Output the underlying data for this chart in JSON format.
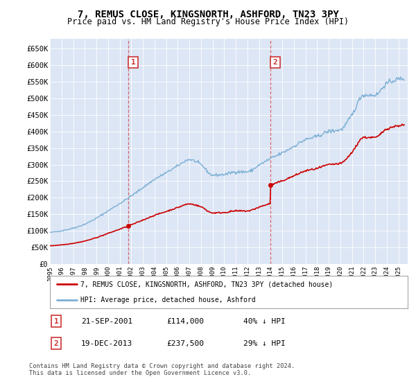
{
  "title": "7, REMUS CLOSE, KINGSNORTH, ASHFORD, TN23 3PY",
  "subtitle": "Price paid vs. HM Land Registry's House Price Index (HPI)",
  "bg_color": "#ffffff",
  "plot_bg_color": "#dce6f5",
  "grid_color": "#ffffff",
  "sale1_date_x": 2001.72,
  "sale1_price": 114000,
  "sale1_label": "1",
  "sale2_date_x": 2013.96,
  "sale2_price": 237500,
  "sale2_label": "2",
  "xmin": 1995.0,
  "xmax": 2025.8,
  "ymin": 0,
  "ymax": 680000,
  "yticks": [
    0,
    50000,
    100000,
    150000,
    200000,
    250000,
    300000,
    350000,
    400000,
    450000,
    500000,
    550000,
    600000,
    650000
  ],
  "ytick_labels": [
    "£0",
    "£50K",
    "£100K",
    "£150K",
    "£200K",
    "£250K",
    "£300K",
    "£350K",
    "£400K",
    "£450K",
    "£500K",
    "£550K",
    "£600K",
    "£650K"
  ],
  "xticks": [
    1995,
    1996,
    1997,
    1998,
    1999,
    2000,
    2001,
    2002,
    2003,
    2004,
    2005,
    2006,
    2007,
    2008,
    2009,
    2010,
    2011,
    2012,
    2013,
    2014,
    2015,
    2016,
    2017,
    2018,
    2019,
    2020,
    2021,
    2022,
    2023,
    2024,
    2025
  ],
  "hpi_color": "#7bafd4",
  "price_color": "#cc0000",
  "dashed_color": "#cc3333",
  "legend_label_price": "7, REMUS CLOSE, KINGSNORTH, ASHFORD, TN23 3PY (detached house)",
  "legend_label_hpi": "HPI: Average price, detached house, Ashford",
  "note1_label": "1",
  "note1_date": "21-SEP-2001",
  "note1_price": "£114,000",
  "note1_pct": "40% ↓ HPI",
  "note2_label": "2",
  "note2_date": "19-DEC-2013",
  "note2_price": "£237,500",
  "note2_pct": "29% ↓ HPI",
  "footer": "Contains HM Land Registry data © Crown copyright and database right 2024.\nThis data is licensed under the Open Government Licence v3.0."
}
